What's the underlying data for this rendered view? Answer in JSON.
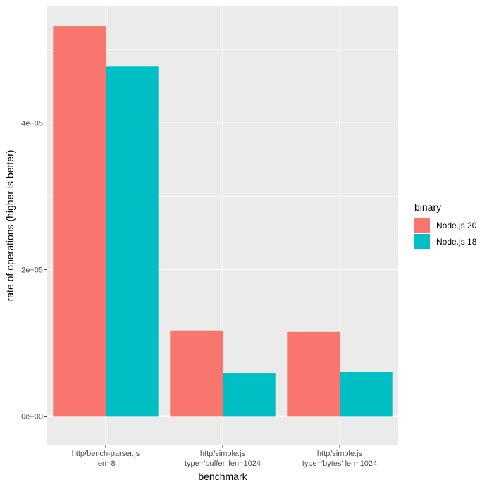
{
  "chart_data": {
    "type": "bar",
    "xlabel": "benchmark",
    "ylabel": "rate of operations (higher is better)",
    "ylim": [
      -40000,
      560000
    ],
    "y_ticks": [
      {
        "value": 0,
        "label": "0e+00"
      },
      {
        "value": 200000,
        "label": "2e+05"
      },
      {
        "value": 400000,
        "label": "4e+05"
      }
    ],
    "y_minor_ticks": [
      100000,
      300000,
      500000
    ],
    "categories": [
      [
        "http/bench-parser.js",
        "len=8"
      ],
      [
        "http/simple.js",
        "type='buffer' len=1024"
      ],
      [
        "http/simple.js",
        "type='bytes' len=1024"
      ]
    ],
    "series": [
      {
        "name": "Node.js 20",
        "color": "#F8766D",
        "values": [
          532000,
          117000,
          115000
        ]
      },
      {
        "name": "Node.js 18",
        "color": "#00BFC4",
        "values": [
          477000,
          59000,
          60000
        ]
      }
    ],
    "legend": {
      "title": "binary",
      "placement": "right"
    },
    "grid": true,
    "panel_color": "#EBEBEB",
    "grid_color": "#FFFFFF"
  }
}
